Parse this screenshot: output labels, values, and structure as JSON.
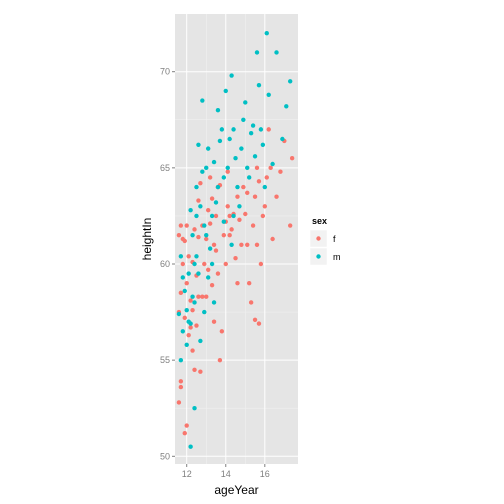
{
  "chart_data": {
    "type": "scatter",
    "title": "",
    "xlabel": "ageYear",
    "ylabel": "heightIn",
    "xlim": [
      11.4,
      17.7
    ],
    "ylim": [
      49.6,
      73.0
    ],
    "x_ticks": [
      "12",
      "14",
      "16"
    ],
    "x_tick_values": [
      12,
      14,
      16
    ],
    "y_ticks": [
      "50",
      "55",
      "60",
      "65",
      "70"
    ],
    "y_tick_values": [
      50,
      55,
      60,
      65,
      70
    ],
    "grid": true,
    "legend": {
      "title": "sex",
      "position": "right"
    },
    "series": [
      {
        "name": "f",
        "color": "#F8766D",
        "points": [
          [
            11.6,
            52.8
          ],
          [
            11.7,
            53.6
          ],
          [
            11.7,
            53.9
          ],
          [
            11.9,
            51.2
          ],
          [
            12.0,
            51.6
          ],
          [
            11.6,
            57.5
          ],
          [
            11.7,
            58.5
          ],
          [
            11.8,
            60.0
          ],
          [
            11.6,
            61.5
          ],
          [
            11.9,
            61.2
          ],
          [
            12.1,
            60.4
          ],
          [
            12.0,
            62.0
          ],
          [
            11.7,
            62.0
          ],
          [
            11.8,
            61.3
          ],
          [
            11.9,
            57.2
          ],
          [
            12.1,
            56.3
          ],
          [
            12.2,
            56.7
          ],
          [
            12.3,
            55.5
          ],
          [
            12.0,
            59.0
          ],
          [
            12.2,
            58.1
          ],
          [
            12.4,
            54.5
          ],
          [
            12.7,
            54.4
          ],
          [
            12.5,
            56.8
          ],
          [
            12.3,
            57.6
          ],
          [
            12.6,
            58.3
          ],
          [
            12.5,
            59.4
          ],
          [
            12.3,
            60.1
          ],
          [
            12.6,
            61.4
          ],
          [
            12.4,
            61.8
          ],
          [
            12.8,
            62.0
          ],
          [
            12.6,
            63.3
          ],
          [
            12.7,
            64.2
          ],
          [
            12.9,
            60.0
          ],
          [
            13.0,
            58.3
          ],
          [
            13.1,
            59.7
          ],
          [
            13.0,
            61.3
          ],
          [
            13.2,
            62.1
          ],
          [
            13.1,
            62.8
          ],
          [
            13.3,
            63.4
          ],
          [
            13.4,
            61.0
          ],
          [
            13.5,
            60.7
          ],
          [
            13.2,
            64.5
          ],
          [
            13.6,
            64.0
          ],
          [
            13.5,
            62.5
          ],
          [
            13.3,
            58.9
          ],
          [
            13.4,
            57.0
          ],
          [
            13.7,
            55.0
          ],
          [
            13.8,
            56.5
          ],
          [
            13.6,
            59.5
          ],
          [
            13.9,
            61.5
          ],
          [
            14.0,
            62.2
          ],
          [
            14.1,
            63.0
          ],
          [
            14.2,
            61.5
          ],
          [
            14.0,
            60.0
          ],
          [
            14.3,
            61.8
          ],
          [
            14.4,
            62.6
          ],
          [
            14.1,
            64.8
          ],
          [
            14.5,
            60.3
          ],
          [
            14.6,
            59.0
          ],
          [
            14.7,
            62.3
          ],
          [
            14.8,
            61.0
          ],
          [
            14.6,
            63.5
          ],
          [
            14.9,
            64.0
          ],
          [
            15.0,
            62.6
          ],
          [
            15.1,
            63.7
          ],
          [
            15.2,
            59.0
          ],
          [
            15.3,
            58.0
          ],
          [
            15.1,
            61.0
          ],
          [
            15.4,
            62.0
          ],
          [
            15.5,
            63.5
          ],
          [
            15.6,
            65.0
          ],
          [
            15.7,
            64.3
          ],
          [
            15.6,
            61.0
          ],
          [
            15.8,
            60.0
          ],
          [
            15.5,
            57.1
          ],
          [
            15.7,
            56.9
          ],
          [
            15.9,
            62.5
          ],
          [
            16.0,
            63.0
          ],
          [
            16.1,
            64.5
          ],
          [
            16.3,
            65.0
          ],
          [
            16.4,
            61.3
          ],
          [
            16.2,
            67.0
          ],
          [
            16.6,
            63.5
          ],
          [
            17.3,
            62.0
          ],
          [
            17.4,
            65.5
          ],
          [
            16.8,
            64.8
          ],
          [
            17.0,
            66.4
          ],
          [
            12.8,
            58.3
          ],
          [
            13.7,
            64.1
          ],
          [
            14.2,
            62.5
          ]
        ]
      },
      {
        "name": "m",
        "color": "#00BFC4",
        "points": [
          [
            11.7,
            55.0
          ],
          [
            11.8,
            56.5
          ],
          [
            11.6,
            57.4
          ],
          [
            11.9,
            58.6
          ],
          [
            11.8,
            59.3
          ],
          [
            11.7,
            60.4
          ],
          [
            12.0,
            57.6
          ],
          [
            12.1,
            57.0
          ],
          [
            12.0,
            55.8
          ],
          [
            12.2,
            56.9
          ],
          [
            12.3,
            58.3
          ],
          [
            12.1,
            59.5
          ],
          [
            12.4,
            60.0
          ],
          [
            12.3,
            61.5
          ],
          [
            12.5,
            60.4
          ],
          [
            12.6,
            59.5
          ],
          [
            12.2,
            50.5
          ],
          [
            12.4,
            52.5
          ],
          [
            12.5,
            62.5
          ],
          [
            12.7,
            63.0
          ],
          [
            12.5,
            64.0
          ],
          [
            12.8,
            64.8
          ],
          [
            12.6,
            66.2
          ],
          [
            12.8,
            68.5
          ],
          [
            13.0,
            65.0
          ],
          [
            13.1,
            66.0
          ],
          [
            13.0,
            61.5
          ],
          [
            13.2,
            60.8
          ],
          [
            13.3,
            62.5
          ],
          [
            13.1,
            59.3
          ],
          [
            13.4,
            58.0
          ],
          [
            13.5,
            63.2
          ],
          [
            13.6,
            64.0
          ],
          [
            13.4,
            65.3
          ],
          [
            13.7,
            66.4
          ],
          [
            13.8,
            67.0
          ],
          [
            13.6,
            68.0
          ],
          [
            14.0,
            69.0
          ],
          [
            13.9,
            64.5
          ],
          [
            14.1,
            65.0
          ],
          [
            14.2,
            66.5
          ],
          [
            14.3,
            69.8
          ],
          [
            14.4,
            67.0
          ],
          [
            14.5,
            65.5
          ],
          [
            14.6,
            64.0
          ],
          [
            14.4,
            62.5
          ],
          [
            14.7,
            63.0
          ],
          [
            14.8,
            66.0
          ],
          [
            14.9,
            67.5
          ],
          [
            15.0,
            68.4
          ],
          [
            15.1,
            65.0
          ],
          [
            15.2,
            64.5
          ],
          [
            15.3,
            66.8
          ],
          [
            15.4,
            67.2
          ],
          [
            15.5,
            65.6
          ],
          [
            15.6,
            71.0
          ],
          [
            15.7,
            69.3
          ],
          [
            15.8,
            67.0
          ],
          [
            15.9,
            66.2
          ],
          [
            16.0,
            64.0
          ],
          [
            16.1,
            72.0
          ],
          [
            16.2,
            68.8
          ],
          [
            16.4,
            65.2
          ],
          [
            16.6,
            71.0
          ],
          [
            16.9,
            66.5
          ],
          [
            17.1,
            68.2
          ],
          [
            17.3,
            69.5
          ],
          [
            13.9,
            62.2
          ],
          [
            14.3,
            61.0
          ],
          [
            13.3,
            60.0
          ],
          [
            12.9,
            62.0
          ],
          [
            12.2,
            62.8
          ],
          [
            12.4,
            58.0
          ],
          [
            12.7,
            56.0
          ],
          [
            12.9,
            57.5
          ]
        ]
      }
    ]
  }
}
